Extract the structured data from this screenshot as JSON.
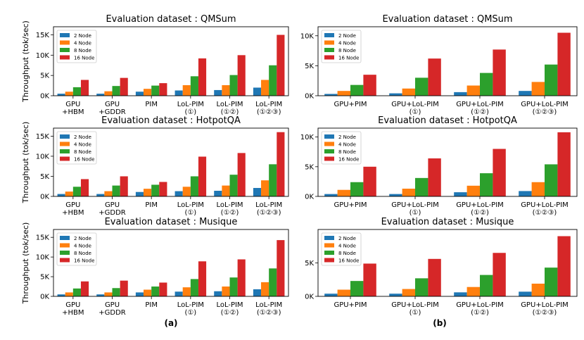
{
  "figure": {
    "panel_labels": [
      "(a)",
      "(b)"
    ]
  },
  "colors": {
    "s1": "#1f77b4",
    "s2": "#ff7f0e",
    "s3": "#2ca02c",
    "s4": "#d62728"
  },
  "chart_data": [
    {
      "type": "bar",
      "title": "Evaluation dataset : QMSum",
      "ylabel": "Throughput (tok/sec)",
      "ylim": [
        0,
        17000
      ],
      "yticks": [
        0,
        5000,
        10000,
        15000
      ],
      "ytick_labels": [
        "0K",
        "5K",
        "10K",
        "15K"
      ],
      "legend_position": "top-left",
      "categories": [
        [
          "GPU",
          "+HBM"
        ],
        [
          "GPU",
          "+GDDR"
        ],
        [
          "PIM"
        ],
        [
          "LoL-PIM",
          "(①)"
        ],
        [
          "LoL-PIM",
          "(①②)"
        ],
        [
          "LoL-PIM",
          "(①②③)"
        ]
      ],
      "series": [
        {
          "name": "2 Node",
          "values": [
            500,
            500,
            1000,
            1300,
            1400,
            2000
          ]
        },
        {
          "name": "4 Node",
          "values": [
            1000,
            1100,
            1700,
            2600,
            2600,
            3900
          ]
        },
        {
          "name": "8 Node",
          "values": [
            2100,
            2400,
            2500,
            4800,
            5100,
            7500
          ]
        },
        {
          "name": "16 Node",
          "values": [
            3900,
            4400,
            3100,
            9200,
            10000,
            15000
          ]
        }
      ]
    },
    {
      "type": "bar",
      "title": "Evaluation dataset : QMSum",
      "ylabel": "",
      "ylim": [
        0,
        11500
      ],
      "yticks": [
        0,
        5000,
        10000
      ],
      "ytick_labels": [
        "0K",
        "5K",
        "10K"
      ],
      "legend_position": "top-left",
      "categories": [
        [
          "GPU+PIM"
        ],
        [
          "GPU+LoL-PIM",
          "(①)"
        ],
        [
          "GPU+LoL-PIM",
          "(①②)"
        ],
        [
          "GPU+LoL-PIM",
          "(①②③)"
        ]
      ],
      "series": [
        {
          "name": "2 Node",
          "values": [
            300,
            400,
            600,
            800
          ]
        },
        {
          "name": "4 Node",
          "values": [
            800,
            1200,
            1700,
            2300
          ]
        },
        {
          "name": "8 Node",
          "values": [
            1800,
            3000,
            3800,
            5200
          ]
        },
        {
          "name": "16 Node",
          "values": [
            3500,
            6200,
            7700,
            10500
          ]
        }
      ]
    },
    {
      "type": "bar",
      "title": "Evaluation dataset : HotpotQA",
      "ylabel": "Throughput (tok/sec)",
      "ylim": [
        0,
        17000
      ],
      "yticks": [
        0,
        5000,
        10000,
        15000
      ],
      "ytick_labels": [
        "0K",
        "5K",
        "10K",
        "15K"
      ],
      "legend_position": "top-left",
      "categories": [
        [
          "GPU",
          "+HBM"
        ],
        [
          "GPU",
          "+GDDR"
        ],
        [
          "PIM"
        ],
        [
          "LoL-PIM",
          "(①)"
        ],
        [
          "LoL-PIM",
          "(①②)"
        ],
        [
          "LoL-PIM",
          "(①②③)"
        ]
      ],
      "series": [
        {
          "name": "2 Node",
          "values": [
            600,
            600,
            1100,
            1300,
            1400,
            2100
          ]
        },
        {
          "name": "4 Node",
          "values": [
            1200,
            1300,
            1900,
            2400,
            2700,
            4000
          ]
        },
        {
          "name": "8 Node",
          "values": [
            2400,
            2700,
            2900,
            5000,
            5400,
            8000
          ]
        },
        {
          "name": "16 Node",
          "values": [
            4300,
            5000,
            3600,
            9900,
            10800,
            16000
          ]
        }
      ]
    },
    {
      "type": "bar",
      "title": "Evaluation dataset : HotpotQA",
      "ylabel": "",
      "ylim": [
        0,
        11500
      ],
      "yticks": [
        0,
        5000,
        10000
      ],
      "ytick_labels": [
        "0K",
        "5K",
        "10K"
      ],
      "legend_position": "top-left",
      "categories": [
        [
          "GPU+PIM"
        ],
        [
          "GPU+LoL-PIM",
          "(①)"
        ],
        [
          "GPU+LoL-PIM",
          "(①②)"
        ],
        [
          "GPU+LoL-PIM",
          "(①②③)"
        ]
      ],
      "series": [
        {
          "name": "2 Node",
          "values": [
            400,
            400,
            700,
            900
          ]
        },
        {
          "name": "4 Node",
          "values": [
            1100,
            1300,
            1800,
            2400
          ]
        },
        {
          "name": "8 Node",
          "values": [
            2400,
            3100,
            3900,
            5400
          ]
        },
        {
          "name": "16 Node",
          "values": [
            5000,
            6400,
            8000,
            10800
          ]
        }
      ]
    },
    {
      "type": "bar",
      "title": "Evaluation dataset : Musique",
      "ylabel": "Throughput (tok/sec)",
      "ylim": [
        0,
        17000
      ],
      "yticks": [
        0,
        5000,
        10000,
        15000
      ],
      "ytick_labels": [
        "0K",
        "5K",
        "10K",
        "15K"
      ],
      "legend_position": "top-left",
      "categories": [
        [
          "GPU",
          "+HBM"
        ],
        [
          "GPU",
          "+GDDR"
        ],
        [
          "PIM"
        ],
        [
          "LoL-PIM",
          "(①)"
        ],
        [
          "LoL-PIM",
          "(①②)"
        ],
        [
          "LoL-PIM",
          "(①②③)"
        ]
      ],
      "series": [
        {
          "name": "2 Node",
          "values": [
            500,
            500,
            1000,
            1200,
            1300,
            1800
          ]
        },
        {
          "name": "4 Node",
          "values": [
            1000,
            1000,
            1700,
            2300,
            2500,
            3600
          ]
        },
        {
          "name": "8 Node",
          "values": [
            2000,
            2100,
            2500,
            4400,
            4800,
            7100
          ]
        },
        {
          "name": "16 Node",
          "values": [
            3800,
            4000,
            3500,
            8900,
            9400,
            14300
          ]
        }
      ]
    },
    {
      "type": "bar",
      "title": "Evaluation dataset : Musique",
      "ylabel": "",
      "ylim": [
        0,
        10000
      ],
      "yticks": [
        0,
        5000
      ],
      "ytick_labels": [
        "0K",
        "5K"
      ],
      "legend_position": "top-left",
      "categories": [
        [
          "GPU+PIM"
        ],
        [
          "GPU+LoL-PIM",
          "(①)"
        ],
        [
          "GPU+LoL-PIM",
          "(①②)"
        ],
        [
          "GPU+LoL-PIM",
          "(①②③)"
        ]
      ],
      "series": [
        {
          "name": "2 Node",
          "values": [
            400,
            400,
            600,
            700
          ]
        },
        {
          "name": "4 Node",
          "values": [
            1000,
            1100,
            1400,
            1900
          ]
        },
        {
          "name": "8 Node",
          "values": [
            2300,
            2700,
            3200,
            4300
          ]
        },
        {
          "name": "16 Node",
          "values": [
            4900,
            5600,
            6500,
            9000
          ]
        }
      ]
    }
  ]
}
